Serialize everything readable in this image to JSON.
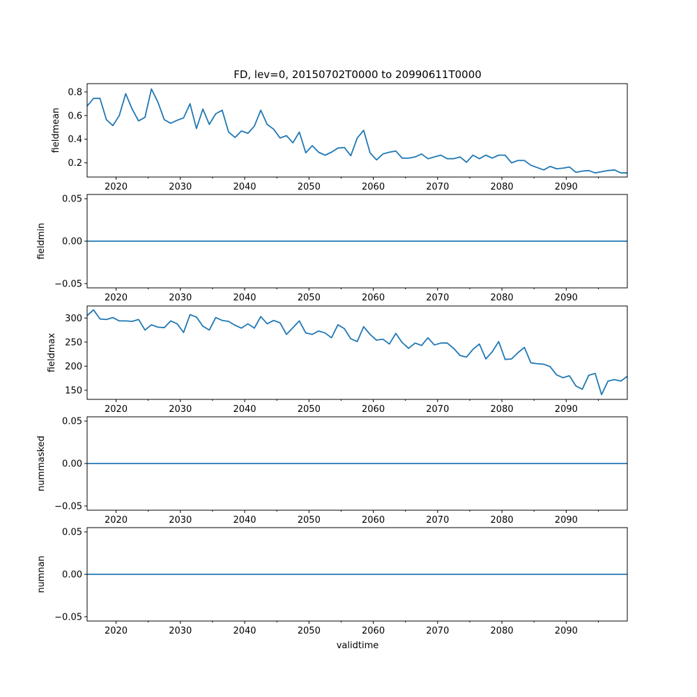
{
  "chart_data": {
    "type": "line",
    "title": "FD, lev=0, 20150702T0000 to 20990611T0000",
    "xlabel": "validtime",
    "xlim": [
      2015.5,
      2099.5
    ],
    "x_ticks": [
      2020,
      2030,
      2040,
      2050,
      2060,
      2070,
      2080,
      2090
    ],
    "x_tick_labels": [
      "2020",
      "2030",
      "2040",
      "2050",
      "2060",
      "2070",
      "2080",
      "2090"
    ],
    "x_minor_ticks": [
      2025,
      2035,
      2045,
      2055,
      2065,
      2075,
      2085,
      2095
    ],
    "x": [
      2015.5,
      2016.5,
      2017.5,
      2018.5,
      2019.5,
      2020.5,
      2021.5,
      2022.5,
      2023.5,
      2024.5,
      2025.5,
      2026.5,
      2027.5,
      2028.5,
      2029.5,
      2030.5,
      2031.5,
      2032.5,
      2033.5,
      2034.5,
      2035.5,
      2036.5,
      2037.5,
      2038.5,
      2039.5,
      2040.5,
      2041.5,
      2042.5,
      2043.5,
      2044.5,
      2045.5,
      2046.5,
      2047.5,
      2048.5,
      2049.5,
      2050.5,
      2051.5,
      2052.5,
      2053.5,
      2054.5,
      2055.5,
      2056.5,
      2057.5,
      2058.5,
      2059.5,
      2060.5,
      2061.5,
      2062.5,
      2063.5,
      2064.5,
      2065.5,
      2066.5,
      2067.5,
      2068.5,
      2069.5,
      2070.5,
      2071.5,
      2072.5,
      2073.5,
      2074.5,
      2075.5,
      2076.5,
      2077.5,
      2078.5,
      2079.5,
      2080.5,
      2081.5,
      2082.5,
      2083.5,
      2084.5,
      2085.5,
      2086.5,
      2087.5,
      2088.5,
      2089.5,
      2090.5,
      2091.5,
      2092.5,
      2093.5,
      2094.5,
      2095.5,
      2096.5,
      2097.5,
      2098.5,
      2099.5
    ],
    "color": "#1f77b4",
    "panels": [
      {
        "ylabel": "fieldmean",
        "ylim": [
          0.08,
          0.87
        ],
        "y_ticks": [
          0.2,
          0.4,
          0.6,
          0.8
        ],
        "y_tick_labels": [
          "0.2",
          "0.4",
          "0.6",
          "0.8"
        ],
        "values": [
          0.68,
          0.745,
          0.745,
          0.565,
          0.515,
          0.6,
          0.785,
          0.655,
          0.555,
          0.585,
          0.825,
          0.715,
          0.565,
          0.535,
          0.56,
          0.58,
          0.7,
          0.49,
          0.655,
          0.525,
          0.615,
          0.645,
          0.46,
          0.415,
          0.47,
          0.45,
          0.51,
          0.645,
          0.525,
          0.485,
          0.41,
          0.43,
          0.37,
          0.46,
          0.285,
          0.345,
          0.29,
          0.265,
          0.29,
          0.325,
          0.33,
          0.26,
          0.41,
          0.475,
          0.285,
          0.225,
          0.275,
          0.29,
          0.3,
          0.24,
          0.24,
          0.25,
          0.275,
          0.235,
          0.25,
          0.265,
          0.235,
          0.235,
          0.25,
          0.205,
          0.265,
          0.235,
          0.265,
          0.24,
          0.265,
          0.265,
          0.2,
          0.22,
          0.22,
          0.18,
          0.16,
          0.14,
          0.17,
          0.15,
          0.155,
          0.165,
          0.12,
          0.13,
          0.135,
          0.115,
          0.125,
          0.135,
          0.14,
          0.115,
          0.115
        ]
      },
      {
        "ylabel": "fieldmin",
        "ylim": [
          -0.055,
          0.055
        ],
        "y_ticks": [
          -0.05,
          0.0,
          0.05
        ],
        "y_tick_labels": [
          "−0.05",
          "0.00",
          "0.05"
        ],
        "values": [
          0,
          0,
          0,
          0,
          0,
          0,
          0,
          0,
          0,
          0,
          0,
          0,
          0,
          0,
          0,
          0,
          0,
          0,
          0,
          0,
          0,
          0,
          0,
          0,
          0,
          0,
          0,
          0,
          0,
          0,
          0,
          0,
          0,
          0,
          0,
          0,
          0,
          0,
          0,
          0,
          0,
          0,
          0,
          0,
          0,
          0,
          0,
          0,
          0,
          0,
          0,
          0,
          0,
          0,
          0,
          0,
          0,
          0,
          0,
          0,
          0,
          0,
          0,
          0,
          0,
          0,
          0,
          0,
          0,
          0,
          0,
          0,
          0,
          0,
          0,
          0,
          0,
          0,
          0,
          0,
          0,
          0,
          0,
          0,
          0
        ]
      },
      {
        "ylabel": "fieldmax",
        "ylim": [
          131,
          325
        ],
        "y_ticks": [
          150,
          200,
          250,
          300
        ],
        "y_tick_labels": [
          "150",
          "200",
          "250",
          "300"
        ],
        "values": [
          305,
          317,
          298,
          297,
          301,
          294,
          294,
          293,
          297,
          275,
          286,
          281,
          280,
          294,
          288,
          270,
          307,
          302,
          283,
          275,
          301,
          295,
          293,
          285,
          279,
          288,
          279,
          303,
          288,
          295,
          290,
          266,
          280,
          294,
          269,
          266,
          273,
          269,
          259,
          286,
          278,
          257,
          251,
          282,
          266,
          254,
          256,
          246,
          268,
          249,
          237,
          248,
          243,
          259,
          244,
          248,
          248,
          237,
          222,
          219,
          235,
          246,
          215,
          230,
          251,
          214,
          215,
          228,
          239,
          207,
          205,
          204,
          199,
          182,
          176,
          180,
          159,
          152,
          181,
          185,
          141,
          169,
          172,
          169,
          179
        ]
      },
      {
        "ylabel": "nummasked",
        "ylim": [
          -0.055,
          0.055
        ],
        "y_ticks": [
          -0.05,
          0.0,
          0.05
        ],
        "y_tick_labels": [
          "−0.05",
          "0.00",
          "0.05"
        ],
        "values": [
          0,
          0,
          0,
          0,
          0,
          0,
          0,
          0,
          0,
          0,
          0,
          0,
          0,
          0,
          0,
          0,
          0,
          0,
          0,
          0,
          0,
          0,
          0,
          0,
          0,
          0,
          0,
          0,
          0,
          0,
          0,
          0,
          0,
          0,
          0,
          0,
          0,
          0,
          0,
          0,
          0,
          0,
          0,
          0,
          0,
          0,
          0,
          0,
          0,
          0,
          0,
          0,
          0,
          0,
          0,
          0,
          0,
          0,
          0,
          0,
          0,
          0,
          0,
          0,
          0,
          0,
          0,
          0,
          0,
          0,
          0,
          0,
          0,
          0,
          0,
          0,
          0,
          0,
          0,
          0,
          0,
          0,
          0,
          0,
          0
        ]
      },
      {
        "ylabel": "numnan",
        "ylim": [
          -0.055,
          0.055
        ],
        "y_ticks": [
          -0.05,
          0.0,
          0.05
        ],
        "y_tick_labels": [
          "−0.05",
          "0.00",
          "0.05"
        ],
        "values": [
          0,
          0,
          0,
          0,
          0,
          0,
          0,
          0,
          0,
          0,
          0,
          0,
          0,
          0,
          0,
          0,
          0,
          0,
          0,
          0,
          0,
          0,
          0,
          0,
          0,
          0,
          0,
          0,
          0,
          0,
          0,
          0,
          0,
          0,
          0,
          0,
          0,
          0,
          0,
          0,
          0,
          0,
          0,
          0,
          0,
          0,
          0,
          0,
          0,
          0,
          0,
          0,
          0,
          0,
          0,
          0,
          0,
          0,
          0,
          0,
          0,
          0,
          0,
          0,
          0,
          0,
          0,
          0,
          0,
          0,
          0,
          0,
          0,
          0,
          0,
          0,
          0,
          0,
          0,
          0,
          0,
          0,
          0,
          0,
          0
        ]
      }
    ]
  }
}
